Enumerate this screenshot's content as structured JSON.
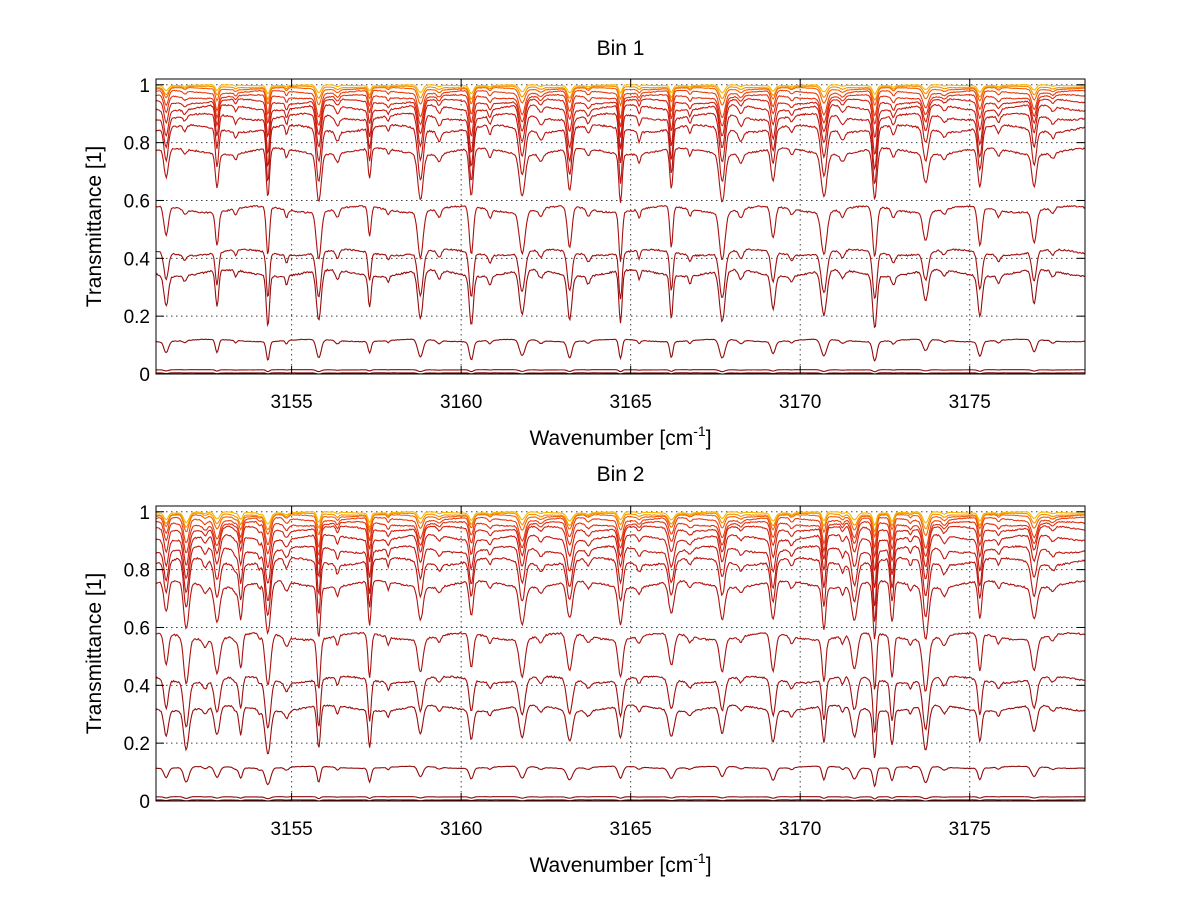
{
  "chart_data": [
    {
      "type": "line",
      "title": "Bin 1",
      "xlabel": "Wavenumber [cm",
      "xlabel_sup": "-1",
      "xlabel_close": "]",
      "ylabel": "Transmittance [1]",
      "xlim": [
        3151,
        3178.4
      ],
      "ylim": [
        0,
        1.02
      ],
      "xticks": [
        3155,
        3160,
        3165,
        3170,
        3175
      ],
      "xtick_labels": [
        "3155",
        "3160",
        "3165",
        "3170",
        "3175"
      ],
      "yticks": [
        0,
        0.2,
        0.4,
        0.6,
        0.8,
        1
      ],
      "ytick_labels": [
        "0",
        "0.2",
        "0.4",
        "0.6",
        "0.8",
        "1"
      ],
      "grid": "dotted",
      "line_centers": [
        3151.3,
        3152.8,
        3154.3,
        3155.8,
        3157.3,
        3158.8,
        3160.3,
        3161.8,
        3163.2,
        3164.7,
        3166.2,
        3167.7,
        3169.2,
        3170.7,
        3172.2,
        3173.7,
        3175.3,
        3176.9
      ],
      "series": [
        {
          "baseline": 1.0,
          "min_dip": 0.97,
          "color": "#f6b800"
        },
        {
          "baseline": 0.995,
          "min_dip": 0.95,
          "color": "#f59000"
        },
        {
          "baseline": 0.99,
          "min_dip": 0.93,
          "color": "#f06000"
        },
        {
          "baseline": 0.98,
          "min_dip": 0.89,
          "color": "#e84010"
        },
        {
          "baseline": 0.965,
          "min_dip": 0.86,
          "color": "#e03010"
        },
        {
          "baseline": 0.95,
          "min_dip": 0.82,
          "color": "#d02010"
        },
        {
          "baseline": 0.93,
          "min_dip": 0.77,
          "color": "#c81a10"
        },
        {
          "baseline": 0.9,
          "min_dip": 0.72,
          "color": "#c01810"
        },
        {
          "baseline": 0.86,
          "min_dip": 0.66,
          "color": "#b81510"
        },
        {
          "baseline": 0.78,
          "min_dip": 0.6,
          "color": "#b01410"
        },
        {
          "baseline": 0.58,
          "min_dip": 0.4,
          "color": "#a81210"
        },
        {
          "baseline": 0.43,
          "min_dip": 0.26,
          "color": "#a01010"
        },
        {
          "baseline": 0.36,
          "min_dip": 0.17,
          "color": "#980e0e"
        },
        {
          "baseline": 0.12,
          "min_dip": 0.05,
          "color": "#900c0c"
        },
        {
          "baseline": 0.015,
          "min_dip": 0.008,
          "color": "#880a0a"
        },
        {
          "baseline": 0.004,
          "min_dip": 0.0,
          "color": "#7a0808"
        }
      ]
    },
    {
      "type": "line",
      "title": "Bin 2",
      "xlabel": "Wavenumber [cm",
      "xlabel_sup": "-1",
      "xlabel_close": "]",
      "ylabel": "Transmittance [1]",
      "xlim": [
        3151,
        3178.4
      ],
      "ylim": [
        0,
        1.02
      ],
      "xticks": [
        3155,
        3160,
        3165,
        3170,
        3175
      ],
      "xtick_labels": [
        "3155",
        "3160",
        "3165",
        "3170",
        "3175"
      ],
      "yticks": [
        0,
        0.2,
        0.4,
        0.6,
        0.8,
        1
      ],
      "ytick_labels": [
        "0",
        "0.2",
        "0.4",
        "0.6",
        "0.8",
        "1"
      ],
      "grid": "dotted",
      "line_centers": [
        3151.3,
        3151.9,
        3152.8,
        3153.5,
        3154.3,
        3155.8,
        3157.3,
        3158.8,
        3160.3,
        3161.8,
        3163.2,
        3164.7,
        3166.2,
        3167.7,
        3169.2,
        3170.7,
        3171.6,
        3172.2,
        3172.7,
        3173.7,
        3175.3,
        3176.9
      ],
      "series": [
        {
          "baseline": 1.0,
          "min_dip": 0.96,
          "color": "#f6b800"
        },
        {
          "baseline": 0.995,
          "min_dip": 0.94,
          "color": "#f59000"
        },
        {
          "baseline": 0.99,
          "min_dip": 0.92,
          "color": "#f06000"
        },
        {
          "baseline": 0.98,
          "min_dip": 0.88,
          "color": "#e84010"
        },
        {
          "baseline": 0.965,
          "min_dip": 0.85,
          "color": "#e03010"
        },
        {
          "baseline": 0.95,
          "min_dip": 0.81,
          "color": "#d02010"
        },
        {
          "baseline": 0.92,
          "min_dip": 0.76,
          "color": "#c81a10"
        },
        {
          "baseline": 0.88,
          "min_dip": 0.7,
          "color": "#c01810"
        },
        {
          "baseline": 0.84,
          "min_dip": 0.64,
          "color": "#b81510"
        },
        {
          "baseline": 0.76,
          "min_dip": 0.57,
          "color": "#b01410"
        },
        {
          "baseline": 0.58,
          "min_dip": 0.39,
          "color": "#a81210"
        },
        {
          "baseline": 0.43,
          "min_dip": 0.25,
          "color": "#a01010"
        },
        {
          "baseline": 0.33,
          "min_dip": 0.17,
          "color": "#980e0e"
        },
        {
          "baseline": 0.12,
          "min_dip": 0.06,
          "color": "#900c0c"
        },
        {
          "baseline": 0.015,
          "min_dip": 0.008,
          "color": "#880a0a"
        },
        {
          "baseline": 0.004,
          "min_dip": 0.0,
          "color": "#7a0808"
        }
      ]
    }
  ]
}
